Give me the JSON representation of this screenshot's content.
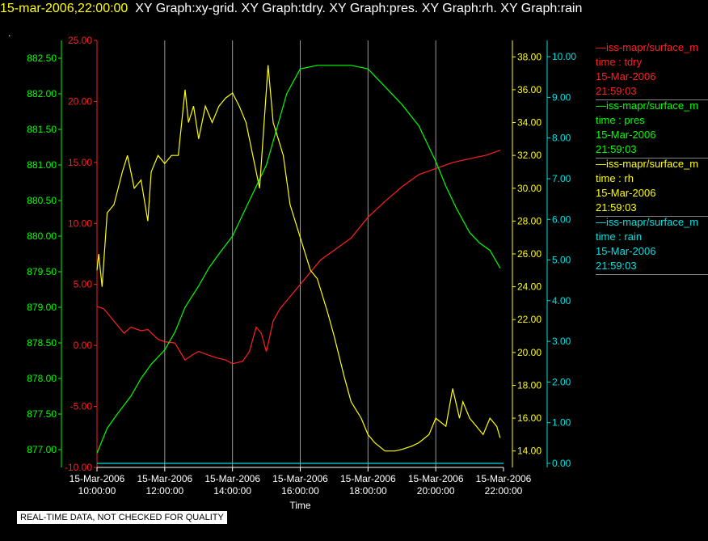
{
  "header": {
    "timestamp": "15-mar-2006,22:00:00",
    "titles": "XY Graph:xy-grid.  XY Graph:tdry.  XY Graph:pres.  XY Graph:rh.  XY Graph:rain",
    "dot": "."
  },
  "notice": "REAL-TIME DATA, NOT CHECKED FOR QUALITY",
  "legend": [
    {
      "line": "—iss-mapr/surface_m",
      "var": "time : tdry",
      "date": "15-Mar-2006",
      "time": "21:59:03",
      "color": "#ff2020"
    },
    {
      "line": "—iss-mapr/surface_m",
      "var": "time : pres",
      "date": "15-Mar-2006",
      "time": "21:59:03",
      "color": "#00ff00"
    },
    {
      "line": "—iss-mapr/surface_m",
      "var": "time : rh",
      "date": "15-Mar-2006",
      "time": "21:59:03",
      "color": "#ffff00"
    },
    {
      "line": "—iss-mapr/surface_m",
      "var": "time : rain",
      "date": "15-Mar-2006",
      "time": "21:59:03",
      "color": "#00e0e0"
    }
  ],
  "chart_data": {
    "type": "line",
    "xlabel": "Time",
    "x_ticks": [
      {
        "date": "15-Mar-2006",
        "time": "10:00:00",
        "hour": 10
      },
      {
        "date": "15-Mar-2006",
        "time": "12:00:00",
        "hour": 12
      },
      {
        "date": "15-Mar-2006",
        "time": "14:00:00",
        "hour": 14
      },
      {
        "date": "15-Mar-2006",
        "time": "16:00:00",
        "hour": 16
      },
      {
        "date": "15-Mar-2006",
        "time": "18:00:00",
        "hour": 18
      },
      {
        "date": "15-Mar-2006",
        "time": "20:00:00",
        "hour": 20
      },
      {
        "date": "15-Mar-2006",
        "time": "22:00:00",
        "hour": 22
      }
    ],
    "xlim": [
      10,
      22
    ],
    "grid": true,
    "axes": {
      "tdry": {
        "color": "#ff2020",
        "ylim": [
          -10,
          25
        ],
        "ticks": [
          "-10.00",
          "-5.00",
          "0.00",
          "5.00",
          "10.00",
          "15.00",
          "20.00",
          "25.00"
        ]
      },
      "pres": {
        "color": "#00ff00",
        "ylim": [
          876.75,
          882.75
        ],
        "ticks": [
          "877.00",
          "877.50",
          "878.00",
          "878.50",
          "879.00",
          "879.50",
          "880.00",
          "880.50",
          "881.00",
          "881.50",
          "882.00",
          "882.50"
        ]
      },
      "rh": {
        "color": "#ffff00",
        "ylim": [
          13,
          39
        ],
        "ticks": [
          "14.00",
          "16.00",
          "18.00",
          "20.00",
          "22.00",
          "24.00",
          "26.00",
          "28.00",
          "30.00",
          "32.00",
          "34.00",
          "36.00",
          "38.00"
        ]
      },
      "rain": {
        "color": "#00e0e0",
        "ylim": [
          -0.1,
          10.4
        ],
        "ticks": [
          "0.00",
          "1.00",
          "2.00",
          "3.00",
          "4.00",
          "5.00",
          "6.00",
          "7.00",
          "8.00",
          "9.00",
          "10.00"
        ]
      }
    },
    "series": [
      {
        "axis": "tdry",
        "color": "#ff2020",
        "x": [
          10,
          10.2,
          10.5,
          10.8,
          11,
          11.3,
          11.5,
          11.8,
          12,
          12.3,
          12.6,
          12.8,
          13,
          13.3,
          13.5,
          13.8,
          14,
          14.3,
          14.5,
          14.7,
          14.85,
          15,
          15.2,
          15.4,
          15.7,
          16,
          16.3,
          16.6,
          17,
          17.5,
          18,
          18.5,
          19,
          19.5,
          20,
          20.5,
          21,
          21.5,
          21.9
        ],
        "values": [
          3.2,
          3,
          2,
          1,
          1.5,
          1.2,
          1.3,
          0.5,
          0.3,
          0.2,
          -1.2,
          -0.8,
          -0.5,
          -0.8,
          -1,
          -1.2,
          -1.5,
          -1.3,
          -0.5,
          1.5,
          1,
          -0.5,
          2,
          3,
          4,
          5,
          6,
          7,
          7.8,
          8.8,
          10.5,
          11.8,
          13,
          14,
          14.5,
          15,
          15.3,
          15.6,
          16
        ]
      },
      {
        "axis": "pres",
        "color": "#00ff00",
        "x": [
          10,
          10.3,
          10.6,
          11,
          11.3,
          11.6,
          12,
          12.3,
          12.6,
          13,
          13.3,
          13.6,
          14,
          14.3,
          14.6,
          15,
          15.3,
          15.6,
          16,
          16.5,
          17,
          17.5,
          18,
          18.5,
          19,
          19.5,
          20,
          20.3,
          20.6,
          21,
          21.3,
          21.6,
          21.9
        ],
        "values": [
          876.95,
          877.3,
          877.5,
          877.75,
          878,
          878.2,
          878.4,
          878.65,
          879,
          879.3,
          879.55,
          879.75,
          880,
          880.3,
          880.6,
          881,
          881.5,
          882,
          882.35,
          882.4,
          882.4,
          882.4,
          882.35,
          882.1,
          881.85,
          881.55,
          881.05,
          880.7,
          880.4,
          880.05,
          879.9,
          879.8,
          879.55
        ]
      },
      {
        "axis": "rh",
        "color": "#ffff00",
        "x": [
          10,
          10.05,
          10.15,
          10.3,
          10.5,
          10.75,
          10.9,
          11.1,
          11.3,
          11.5,
          11.6,
          11.8,
          12,
          12.2,
          12.4,
          12.6,
          12.7,
          12.85,
          13,
          13.2,
          13.4,
          13.6,
          13.8,
          14,
          14.2,
          14.4,
          14.6,
          14.8,
          14.9,
          15.05,
          15.2,
          15.35,
          15.5,
          15.7,
          16,
          16.3,
          16.5,
          16.8,
          17,
          17.3,
          17.5,
          17.8,
          18,
          18.2,
          18.5,
          18.8,
          19,
          19.3,
          19.5,
          19.8,
          20,
          20.3,
          20.5,
          20.7,
          20.8,
          21,
          21.2,
          21.4,
          21.6,
          21.8,
          21.9
        ],
        "values": [
          25,
          26,
          24,
          28.5,
          29,
          31,
          32,
          30,
          30.5,
          28,
          31,
          32,
          31.5,
          32,
          32,
          36,
          34,
          35,
          33,
          35,
          34,
          35,
          35.5,
          35.8,
          35,
          34,
          32,
          30,
          33,
          37.5,
          34,
          33,
          32,
          29,
          27,
          25,
          24.5,
          22.5,
          21,
          18.5,
          17,
          16,
          15,
          14.5,
          14,
          14,
          14.1,
          14.3,
          14.5,
          15,
          16,
          15.5,
          17.8,
          16,
          17,
          16,
          15.5,
          15,
          16,
          15.5,
          14.8
        ]
      },
      {
        "axis": "rain",
        "color": "#00e0e0",
        "x": [
          10,
          22
        ],
        "values": [
          0,
          0
        ]
      }
    ]
  }
}
